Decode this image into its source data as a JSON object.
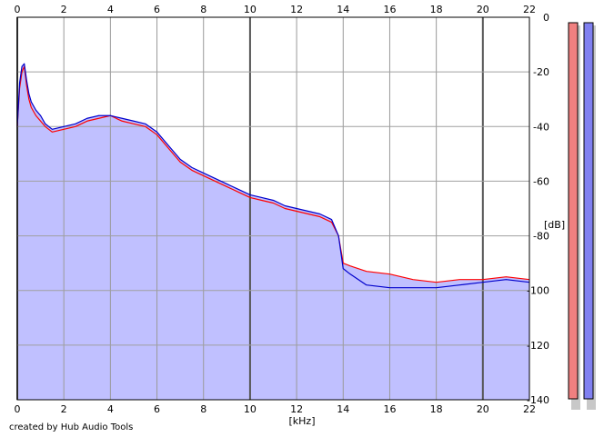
{
  "chart_data": {
    "type": "line",
    "title": "",
    "xlabel": "[kHz]",
    "ylabel": "[dB]",
    "xlim": [
      0,
      22
    ],
    "ylim": [
      -140,
      0
    ],
    "x_ticks": [
      "0",
      "2",
      "4",
      "6",
      "8",
      "10",
      "12",
      "14",
      "16",
      "18",
      "20",
      "22"
    ],
    "y_ticks": [
      "0",
      "-20",
      "-40",
      "-60",
      "-80",
      "-100",
      "-120",
      "-140"
    ],
    "grid": true,
    "series": [
      {
        "color": "#ff0000",
        "x": [
          0,
          0.1,
          0.2,
          0.3,
          0.4,
          0.5,
          0.6,
          0.8,
          1.0,
          1.2,
          1.5,
          2.0,
          2.5,
          3.0,
          3.5,
          4.0,
          4.5,
          5.0,
          5.5,
          6.0,
          6.5,
          7.0,
          7.5,
          8.0,
          8.5,
          9.0,
          9.5,
          10.0,
          10.5,
          11.0,
          11.5,
          12.0,
          12.5,
          13.0,
          13.5,
          13.8,
          14.0,
          14.3,
          15.0,
          16.0,
          17.0,
          18.0,
          19.0,
          20.0,
          21.0,
          22.0
        ],
        "values": [
          -40,
          -26,
          -20,
          -18,
          -25,
          -30,
          -33,
          -36,
          -38,
          -40,
          -42,
          -41,
          -40,
          -38,
          -37,
          -36,
          -38,
          -39,
          -40,
          -43,
          -48,
          -53,
          -56,
          -58,
          -60,
          -62,
          -64,
          -66,
          -67,
          -68,
          -70,
          -71,
          -72,
          -73,
          -75,
          -80,
          -90,
          -91,
          -93,
          -94,
          -96,
          -97,
          -96,
          -96,
          -95,
          -96
        ]
      },
      {
        "color": "#0000cc",
        "x": [
          0,
          0.1,
          0.2,
          0.3,
          0.4,
          0.5,
          0.6,
          0.8,
          1.0,
          1.2,
          1.5,
          2.0,
          2.5,
          3.0,
          3.5,
          4.0,
          4.5,
          5.0,
          5.5,
          6.0,
          6.5,
          7.0,
          7.5,
          8.0,
          8.5,
          9.0,
          9.5,
          10.0,
          10.5,
          11.0,
          11.5,
          12.0,
          12.5,
          13.0,
          13.5,
          13.8,
          14.0,
          14.3,
          15.0,
          16.0,
          17.0,
          18.0,
          19.0,
          20.0,
          21.0,
          22.0
        ],
        "values": [
          -40,
          -24,
          -18,
          -17,
          -23,
          -28,
          -31,
          -34,
          -36,
          -39,
          -41,
          -40,
          -39,
          -37,
          -36,
          -36,
          -37,
          -38,
          -39,
          -42,
          -47,
          -52,
          -55,
          -57,
          -59,
          -61,
          -63,
          -65,
          -66,
          -67,
          -69,
          -70,
          -71,
          -72,
          -74,
          -80,
          -92,
          -94,
          -98,
          -99,
          -99,
          -99,
          -98,
          -97,
          -96,
          -97
        ]
      }
    ],
    "meters": [
      {
        "color": "#f08080"
      },
      {
        "color": "#8080f0"
      }
    ],
    "fill_color": "#c0c0ff",
    "footer": "created by Hub Audio Tools"
  }
}
